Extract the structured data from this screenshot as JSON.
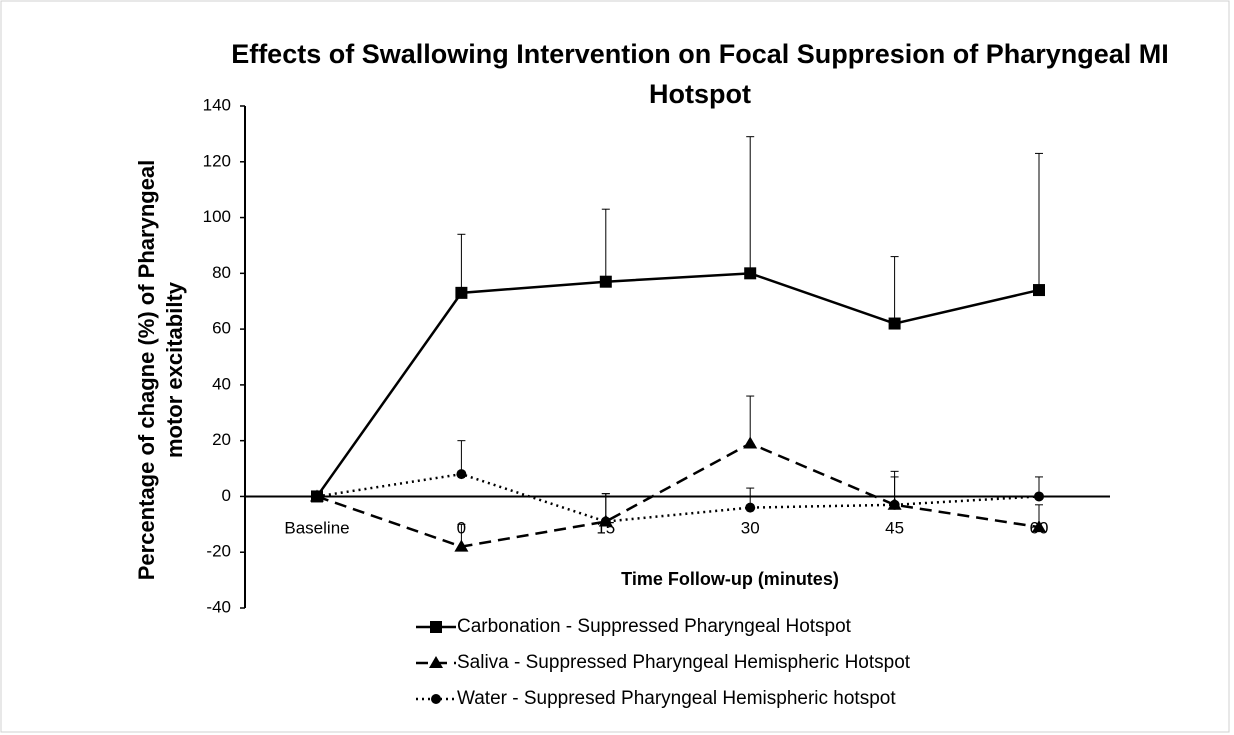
{
  "chart_data": {
    "type": "line",
    "title": "Effects of Swallowing Intervention on Focal Suppresion of Pharyngeal MI Hotspot",
    "ylabel": [
      "Percentage of chagne (%) of Pharyngeal",
      "motor excitabilty"
    ],
    "xlabel": "Time Follow-up (minutes)",
    "categories": [
      "Baseline",
      "0",
      "15",
      "30",
      "45",
      "60"
    ],
    "ylim": [
      -40,
      140
    ],
    "yticks": [
      -40,
      -20,
      0,
      20,
      40,
      60,
      80,
      100,
      120,
      140
    ],
    "series": [
      {
        "name": "Carbonation - Suppressed Pharyngeal Hotspot",
        "color": "#000000",
        "marker": "square",
        "dash": "solid",
        "values": [
          0,
          73,
          77,
          80,
          62,
          74
        ],
        "errors": [
          0,
          21,
          26,
          49,
          24,
          49
        ]
      },
      {
        "name": "Saliva - Suppressed Pharyngeal Hemispheric Hotspot",
        "color": "#000000",
        "marker": "triangle",
        "dash": "dashed",
        "values": [
          0,
          -18,
          -9,
          19,
          -3,
          -11
        ],
        "errors": [
          0,
          8,
          10,
          17,
          12,
          8
        ]
      },
      {
        "name": "Water - Suppresed Pharyngeal Hemispheric hotspot",
        "color": "#000000",
        "marker": "circle",
        "dash": "dotted",
        "values": [
          0,
          8,
          -9,
          -4,
          -3,
          0
        ],
        "errors": [
          0,
          12,
          10,
          7,
          10,
          7
        ]
      }
    ]
  }
}
